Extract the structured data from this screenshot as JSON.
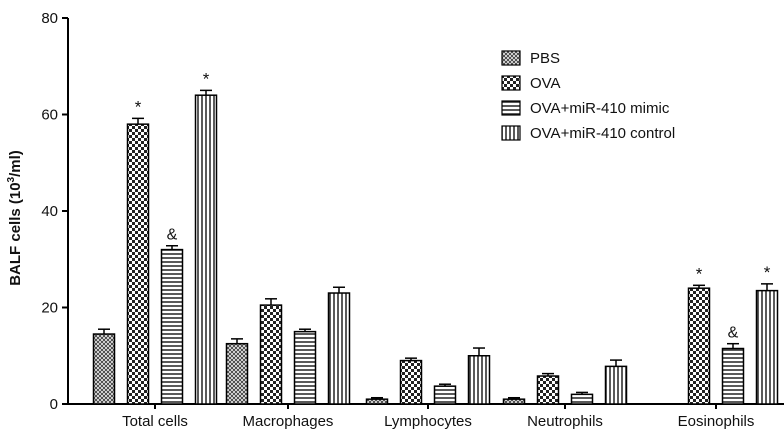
{
  "chart_data": {
    "type": "bar",
    "title": "",
    "xlabel": "",
    "ylabel_main": "BALF cells (10",
    "ylabel_sup": "3",
    "ylabel_end": "/ml)",
    "ylim": [
      0,
      80
    ],
    "yticks": [
      "0",
      "20",
      "40",
      "60",
      "80"
    ],
    "grid": false,
    "legend_position": "top-right",
    "categories": [
      "Total cells",
      "Macrophages",
      "Lymphocytes",
      "Neutrophils",
      "Eosinophils"
    ],
    "series": [
      {
        "name": "PBS",
        "pattern": "fine-crosshatch",
        "values": [
          14.5,
          12.5,
          1.0,
          1.0,
          null
        ],
        "errors": [
          1.0,
          1.0,
          0.3,
          0.3,
          null
        ],
        "annotations": [
          "",
          "",
          "",
          "",
          ""
        ]
      },
      {
        "name": "OVA",
        "pattern": "checkerboard",
        "values": [
          58,
          20.5,
          9.0,
          5.8,
          24
        ],
        "errors": [
          1.2,
          1.3,
          0.5,
          0.5,
          0.6
        ],
        "annotations": [
          "*",
          "",
          "",
          "",
          "*"
        ]
      },
      {
        "name": "OVA+miR-410 mimic",
        "pattern": "horizontal-lines",
        "values": [
          32,
          15,
          3.7,
          2.0,
          11.5
        ],
        "errors": [
          0.8,
          0.5,
          0.4,
          0.4,
          1.0
        ],
        "annotations": [
          "&",
          "",
          "",
          "",
          "&"
        ]
      },
      {
        "name": "OVA+miR-410 control",
        "pattern": "vertical-lines",
        "values": [
          64,
          23,
          10.0,
          7.8,
          23.5
        ],
        "errors": [
          1.0,
          1.2,
          1.6,
          1.3,
          1.4
        ],
        "annotations": [
          "*",
          "",
          "",
          "",
          "*"
        ]
      }
    ]
  }
}
